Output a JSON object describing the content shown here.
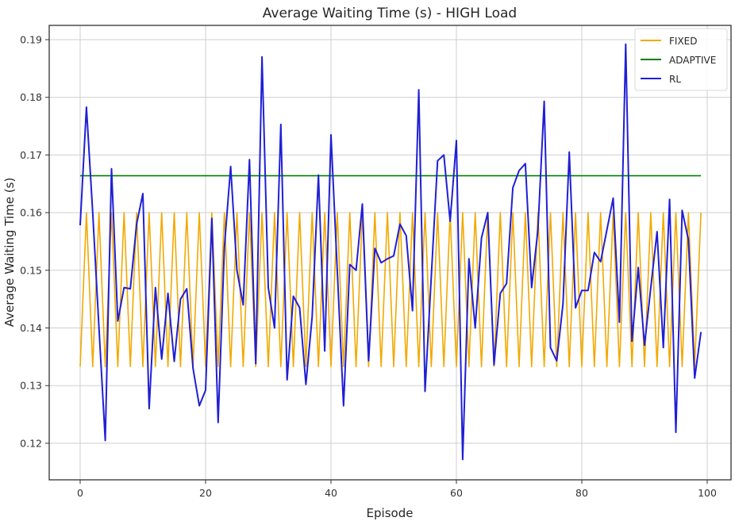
{
  "chart_data": {
    "type": "line",
    "title": "Average Waiting Time (s) - HIGH Load",
    "xlabel": "Episode",
    "ylabel": "Average Waiting Time (s)",
    "xlim": [
      -5,
      104
    ],
    "ylim": [
      0.1137,
      0.1925
    ],
    "xticks": [
      0,
      20,
      40,
      60,
      80,
      100
    ],
    "yticks": [
      0.12,
      0.13,
      0.14,
      0.15,
      0.16,
      0.17,
      0.18,
      0.19
    ],
    "ytick_labels": [
      "0.12",
      "0.13",
      "0.14",
      "0.15",
      "0.16",
      "0.17",
      "0.18",
      "0.19"
    ],
    "grid": true,
    "legend_position": "upper right",
    "x": [
      0,
      1,
      2,
      3,
      4,
      5,
      6,
      7,
      8,
      9,
      10,
      11,
      12,
      13,
      14,
      15,
      16,
      17,
      18,
      19,
      20,
      21,
      22,
      23,
      24,
      25,
      26,
      27,
      28,
      29,
      30,
      31,
      32,
      33,
      34,
      35,
      36,
      37,
      38,
      39,
      40,
      41,
      42,
      43,
      44,
      45,
      46,
      47,
      48,
      49,
      50,
      51,
      52,
      53,
      54,
      55,
      56,
      57,
      58,
      59,
      60,
      61,
      62,
      63,
      64,
      65,
      66,
      67,
      68,
      69,
      70,
      71,
      72,
      73,
      74,
      75,
      76,
      77,
      78,
      79,
      80,
      81,
      82,
      83,
      84,
      85,
      86,
      87,
      88,
      89,
      90,
      91,
      92,
      93,
      94,
      95,
      96,
      97,
      98,
      99
    ],
    "series": [
      {
        "name": "FIXED",
        "color": "#f2a900",
        "pattern": "alternating 0.1333 (even episodes) / 0.16 (odd episodes)",
        "values": [
          0.1333,
          0.16,
          0.1333,
          0.16,
          0.1333,
          0.16,
          0.1333,
          0.16,
          0.1333,
          0.16,
          0.1333,
          0.16,
          0.1333,
          0.16,
          0.1333,
          0.16,
          0.1333,
          0.16,
          0.1333,
          0.16,
          0.1333,
          0.16,
          0.1333,
          0.16,
          0.1333,
          0.16,
          0.1333,
          0.16,
          0.1333,
          0.16,
          0.1333,
          0.16,
          0.1333,
          0.16,
          0.1333,
          0.16,
          0.1333,
          0.16,
          0.1333,
          0.16,
          0.1333,
          0.16,
          0.1333,
          0.16,
          0.1333,
          0.16,
          0.1333,
          0.16,
          0.1333,
          0.16,
          0.1333,
          0.16,
          0.1333,
          0.16,
          0.1333,
          0.16,
          0.1333,
          0.16,
          0.1333,
          0.16,
          0.1333,
          0.16,
          0.1333,
          0.16,
          0.1333,
          0.16,
          0.1333,
          0.16,
          0.1333,
          0.16,
          0.1333,
          0.16,
          0.1333,
          0.16,
          0.1333,
          0.16,
          0.1333,
          0.16,
          0.1333,
          0.16,
          0.1333,
          0.16,
          0.1333,
          0.16,
          0.1333,
          0.16,
          0.1333,
          0.16,
          0.1333,
          0.16,
          0.1333,
          0.16,
          0.1333,
          0.16,
          0.1333,
          0.16,
          0.1333,
          0.16,
          0.1333,
          0.16
        ]
      },
      {
        "name": "ADAPTIVE",
        "color": "#008000",
        "constant": 0.1664,
        "values": [
          0.1664,
          0.1664,
          0.1664,
          0.1664,
          0.1664,
          0.1664,
          0.1664,
          0.1664,
          0.1664,
          0.1664,
          0.1664,
          0.1664,
          0.1664,
          0.1664,
          0.1664,
          0.1664,
          0.1664,
          0.1664,
          0.1664,
          0.1664,
          0.1664,
          0.1664,
          0.1664,
          0.1664,
          0.1664,
          0.1664,
          0.1664,
          0.1664,
          0.1664,
          0.1664,
          0.1664,
          0.1664,
          0.1664,
          0.1664,
          0.1664,
          0.1664,
          0.1664,
          0.1664,
          0.1664,
          0.1664,
          0.1664,
          0.1664,
          0.1664,
          0.1664,
          0.1664,
          0.1664,
          0.1664,
          0.1664,
          0.1664,
          0.1664,
          0.1664,
          0.1664,
          0.1664,
          0.1664,
          0.1664,
          0.1664,
          0.1664,
          0.1664,
          0.1664,
          0.1664,
          0.1664,
          0.1664,
          0.1664,
          0.1664,
          0.1664,
          0.1664,
          0.1664,
          0.1664,
          0.1664,
          0.1664,
          0.1664,
          0.1664,
          0.1664,
          0.1664,
          0.1664,
          0.1664,
          0.1664,
          0.1664,
          0.1664,
          0.1664,
          0.1664,
          0.1664,
          0.1664,
          0.1664,
          0.1664,
          0.1664,
          0.1664,
          0.1664,
          0.1664,
          0.1664,
          0.1664,
          0.1664,
          0.1664,
          0.1664,
          0.1664,
          0.1664,
          0.1664,
          0.1664,
          0.1664,
          0.1664
        ]
      },
      {
        "name": "RL",
        "color": "#1f1fd6",
        "values": [
          0.1578,
          0.1783,
          0.16,
          0.14,
          0.1205,
          0.1676,
          0.1412,
          0.147,
          0.1468,
          0.158,
          0.1633,
          0.126,
          0.147,
          0.1346,
          0.146,
          0.1342,
          0.145,
          0.1468,
          0.133,
          0.1265,
          0.1292,
          0.159,
          0.1236,
          0.154,
          0.168,
          0.15,
          0.144,
          0.1692,
          0.1338,
          0.187,
          0.147,
          0.14,
          0.1753,
          0.131,
          0.1455,
          0.1435,
          0.1302,
          0.142,
          0.1665,
          0.136,
          0.1735,
          0.15,
          0.1265,
          0.151,
          0.15,
          0.1615,
          0.1343,
          0.1538,
          0.1513,
          0.152,
          0.1525,
          0.158,
          0.156,
          0.143,
          0.1813,
          0.129,
          0.149,
          0.169,
          0.17,
          0.1585,
          0.1725,
          0.1172,
          0.152,
          0.14,
          0.1556,
          0.16,
          0.1336,
          0.146,
          0.1477,
          0.1643,
          0.1673,
          0.1685,
          0.147,
          0.157,
          0.1793,
          0.1366,
          0.1343,
          0.1442,
          0.1705,
          0.1435,
          0.1465,
          0.1465,
          0.1531,
          0.1515,
          0.157,
          0.1625,
          0.141,
          0.1892,
          0.1377,
          0.1505,
          0.137,
          0.147,
          0.1567,
          0.1366,
          0.1623,
          0.1219,
          0.1604,
          0.1553,
          0.1313,
          0.1393
        ]
      }
    ]
  },
  "plot": {
    "title": "Average Waiting Time (s) - HIGH Load",
    "xlabel": "Episode",
    "ylabel": "Average Waiting Time (s)",
    "legend": [
      {
        "label": "FIXED",
        "color": "#f2a900"
      },
      {
        "label": "ADAPTIVE",
        "color": "#008000"
      },
      {
        "label": "RL",
        "color": "#1f1fd6"
      }
    ],
    "xtick_labels": [
      "0",
      "20",
      "40",
      "60",
      "80",
      "100"
    ],
    "ytick_labels": [
      "0.12",
      "0.13",
      "0.14",
      "0.15",
      "0.16",
      "0.17",
      "0.18",
      "0.19"
    ]
  }
}
